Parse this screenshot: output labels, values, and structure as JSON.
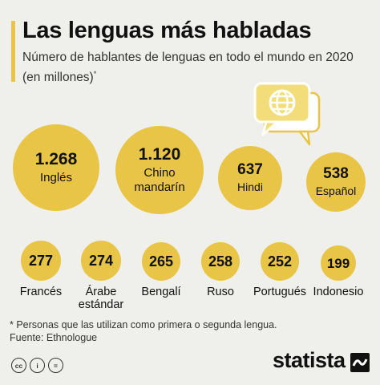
{
  "header": {
    "title": "Las lenguas más habladas",
    "subtitle": "Número de hablantes de lenguas en todo el mundo en 2020 (en millones)",
    "subtitle_mark": "*"
  },
  "colors": {
    "accent": "#e8c547",
    "background": "#efefeb",
    "text": "#111111"
  },
  "icons": [
    "chat-bubble-globe-icon",
    "cc-icon",
    "by-icon",
    "nd-icon"
  ],
  "chart_data": {
    "type": "bubble",
    "title": "Las lenguas más habladas",
    "unit": "millones",
    "items": [
      {
        "value": 1268,
        "value_label": "1.268",
        "label": "Inglés"
      },
      {
        "value": 1120,
        "value_label": "1.120",
        "label": "Chino mandarín"
      },
      {
        "value": 637,
        "value_label": "637",
        "label": "Hindi"
      },
      {
        "value": 538,
        "value_label": "538",
        "label": "Español"
      },
      {
        "value": 277,
        "value_label": "277",
        "label": "Francés"
      },
      {
        "value": 274,
        "value_label": "274",
        "label": "Árabe estándar"
      },
      {
        "value": 265,
        "value_label": "265",
        "label": "Bengalí"
      },
      {
        "value": 258,
        "value_label": "258",
        "label": "Ruso"
      },
      {
        "value": 252,
        "value_label": "252",
        "label": "Portugués"
      },
      {
        "value": 199,
        "value_label": "199",
        "label": "Indonesio"
      }
    ]
  },
  "footer": {
    "footnote": "* Personas que las utilizan como primera o segunda lengua.",
    "source": "Fuente: Ethnologue",
    "brand": "statista",
    "license": [
      "cc",
      "i",
      "="
    ]
  }
}
